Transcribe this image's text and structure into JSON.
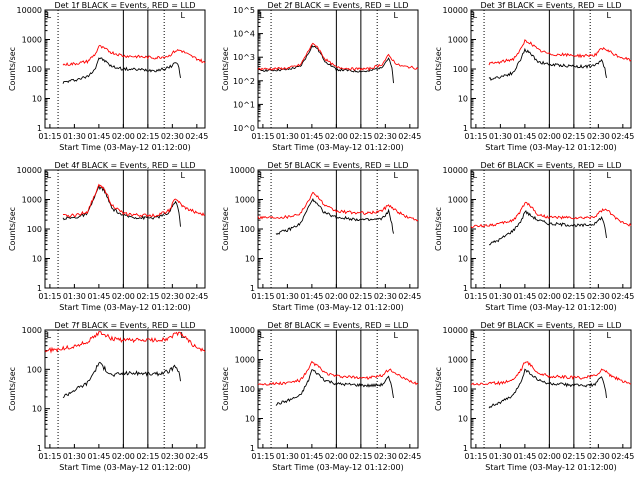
{
  "figure": {
    "x_tick_labels": [
      "01:15",
      "01:30",
      "01:45",
      "02:00",
      "02:15",
      "02:30",
      "02:45"
    ],
    "x_label": "Start Time (03-May-12 01:12:00)",
    "y_label": "Counts/sec"
  },
  "colors": {
    "events": "#000000",
    "lld": "#ff0000",
    "markers": "#000000"
  },
  "chart_data": [
    {
      "type": "line",
      "title": "Det 1f BLACK = Events, RED = LLD",
      "xlabel": "Start Time (03-May-12 01:12:00)",
      "ylabel": "Counts/sec",
      "ylog": true,
      "ylim": [
        1,
        10000
      ],
      "yticks": [
        "1",
        "10",
        "100",
        "1000",
        "10000"
      ],
      "xlim": [
        "01:12",
        "02:50"
      ],
      "x": [
        "01:23",
        "01:30",
        "01:38",
        "01:43",
        "01:45",
        "01:48",
        "01:53",
        "02:00",
        "02:10",
        "02:20",
        "02:28",
        "02:32",
        "02:35",
        "02:36",
        "02:37",
        "02:40",
        "02:43",
        "02:47",
        "02:50"
      ],
      "series": [
        {
          "name": "BLACK = Events",
          "x": [
            "01:23",
            "01:30",
            "01:38",
            "01:43",
            "01:45",
            "01:48",
            "01:53",
            "02:00",
            "02:10",
            "02:20",
            "02:28",
            "02:32",
            "02:34",
            "02:35"
          ],
          "values": [
            35,
            42,
            55,
            110,
            240,
            200,
            120,
            100,
            95,
            90,
            110,
            170,
            120,
            50
          ]
        },
        {
          "name": "RED = LLD",
          "values": [
            140,
            150,
            180,
            330,
            600,
            500,
            360,
            280,
            260,
            240,
            280,
            420,
            430,
            400,
            380,
            300,
            250,
            200,
            160
          ]
        }
      ]
    },
    {
      "type": "line",
      "title": "Det 2f BLACK = Events, RED = LLD",
      "xlabel": "Start Time (03-May-12 01:12:00)",
      "ylabel": "Counts/sec",
      "ylog": true,
      "ylim": [
        1,
        100000
      ],
      "yticks": [
        "10^0",
        "10^1",
        "10^2",
        "10^3",
        "10^4",
        "10^5"
      ],
      "xlim": [
        "01:12",
        "02:50"
      ],
      "x": [
        "01:12",
        "01:20",
        "01:30",
        "01:38",
        "01:43",
        "01:45",
        "01:48",
        "01:53",
        "02:00",
        "02:10",
        "02:20",
        "02:28",
        "02:32",
        "02:35",
        "02:36",
        "02:37",
        "02:40",
        "02:45",
        "02:50"
      ],
      "series": [
        {
          "name": "BLACK = Events",
          "x": [
            "01:12",
            "01:20",
            "01:30",
            "01:38",
            "01:43",
            "01:45",
            "01:48",
            "01:53",
            "02:00",
            "02:10",
            "02:20",
            "02:28",
            "02:32",
            "02:34",
            "02:35"
          ],
          "values": [
            280,
            280,
            300,
            400,
            1500,
            3000,
            2500,
            700,
            300,
            260,
            250,
            400,
            900,
            350,
            80
          ]
        },
        {
          "name": "RED = LLD",
          "values": [
            320,
            320,
            340,
            470,
            1900,
            3600,
            3000,
            850,
            370,
            320,
            320,
            500,
            1200,
            700,
            600,
            500,
            420,
            380,
            330
          ]
        }
      ]
    },
    {
      "type": "line",
      "title": "Det 3f BLACK = Events, RED = LLD",
      "xlabel": "Start Time (03-May-12 01:12:00)",
      "ylabel": "Counts/sec",
      "ylog": true,
      "ylim": [
        1,
        10000
      ],
      "yticks": [
        "1",
        "10",
        "100",
        "1000",
        "10000"
      ],
      "xlim": [
        "01:12",
        "02:50"
      ],
      "x": [
        "01:23",
        "01:30",
        "01:38",
        "01:43",
        "01:45",
        "01:48",
        "01:53",
        "02:00",
        "02:10",
        "02:20",
        "02:28",
        "02:32",
        "02:35",
        "02:36",
        "02:37",
        "02:40",
        "02:43",
        "02:47",
        "02:50"
      ],
      "series": [
        {
          "name": "BLACK = Events",
          "x": [
            "01:23",
            "01:30",
            "01:38",
            "01:43",
            "01:45",
            "01:48",
            "01:53",
            "02:00",
            "02:10",
            "02:20",
            "02:28",
            "02:32",
            "02:34",
            "02:35"
          ],
          "values": [
            45,
            55,
            75,
            250,
            450,
            350,
            180,
            140,
            130,
            120,
            130,
            200,
            110,
            50
          ]
        },
        {
          "name": "RED = LLD",
          "values": [
            150,
            170,
            220,
            500,
            900,
            800,
            450,
            320,
            300,
            280,
            300,
            480,
            450,
            400,
            380,
            300,
            260,
            220,
            200
          ]
        }
      ]
    },
    {
      "type": "line",
      "title": "Det 4f BLACK = Events, RED = LLD",
      "xlabel": "Start Time (03-May-12 01:12:00)",
      "ylabel": "Counts/sec",
      "ylog": true,
      "ylim": [
        1,
        10000
      ],
      "yticks": [
        "1",
        "10",
        "100",
        "1000",
        "10000"
      ],
      "xlim": [
        "01:12",
        "02:50"
      ],
      "x": [
        "01:23",
        "01:30",
        "01:38",
        "01:43",
        "01:45",
        "01:48",
        "01:53",
        "02:00",
        "02:10",
        "02:20",
        "02:28",
        "02:32",
        "02:35",
        "02:36",
        "02:37",
        "02:40",
        "02:43",
        "02:47",
        "02:50"
      ],
      "series": [
        {
          "name": "BLACK = Events",
          "x": [
            "01:23",
            "01:30",
            "01:38",
            "01:43",
            "01:45",
            "01:48",
            "01:53",
            "02:00",
            "02:10",
            "02:20",
            "02:28",
            "02:32",
            "02:34",
            "02:35"
          ],
          "values": [
            230,
            240,
            320,
            1500,
            2600,
            2200,
            500,
            280,
            240,
            240,
            350,
            900,
            400,
            120
          ]
        },
        {
          "name": "RED = LLD",
          "values": [
            280,
            290,
            380,
            1700,
            2900,
            2500,
            650,
            330,
            290,
            290,
            420,
            1100,
            700,
            600,
            550,
            450,
            400,
            320,
            300
          ]
        }
      ]
    },
    {
      "type": "line",
      "title": "Det 5f BLACK = Events, RED = LLD",
      "xlabel": "Start Time (03-May-12 01:12:00)",
      "ylabel": "Counts/sec",
      "ylog": true,
      "ylim": [
        1,
        10000
      ],
      "yticks": [
        "1",
        "10",
        "100",
        "1000",
        "10000"
      ],
      "xlim": [
        "01:12",
        "02:50"
      ],
      "x": [
        "01:12",
        "01:20",
        "01:30",
        "01:38",
        "01:43",
        "01:45",
        "01:48",
        "01:53",
        "02:00",
        "02:10",
        "02:20",
        "02:28",
        "02:32",
        "02:35",
        "02:36",
        "02:37",
        "02:40",
        "02:43",
        "02:47",
        "02:50"
      ],
      "series": [
        {
          "name": "BLACK = Events",
          "x": [
            "01:23",
            "01:30",
            "01:38",
            "01:43",
            "01:45",
            "01:48",
            "01:53",
            "02:00",
            "02:10",
            "02:20",
            "02:28",
            "02:32",
            "02:34",
            "02:35"
          ],
          "values": [
            70,
            90,
            150,
            550,
            1000,
            700,
            350,
            250,
            220,
            200,
            220,
            400,
            150,
            70
          ]
        },
        {
          "name": "RED = LLD",
          "values": [
            250,
            250,
            260,
            340,
            900,
            1700,
            1400,
            600,
            400,
            360,
            340,
            420,
            650,
            500,
            450,
            400,
            320,
            260,
            220,
            200
          ]
        }
      ]
    },
    {
      "type": "line",
      "title": "Det 6f BLACK = Events, RED = LLD",
      "xlabel": "Start Time (03-May-12 01:12:00)",
      "ylabel": "Counts/sec",
      "ylog": true,
      "ylim": [
        1,
        10000
      ],
      "yticks": [
        "1",
        "10",
        "100",
        "1000",
        "10000"
      ],
      "xlim": [
        "01:12",
        "02:50"
      ],
      "x": [
        "01:12",
        "01:20",
        "01:30",
        "01:38",
        "01:43",
        "01:45",
        "01:48",
        "01:53",
        "02:00",
        "02:10",
        "02:20",
        "02:28",
        "02:32",
        "02:35",
        "02:36",
        "02:37",
        "02:40",
        "02:43",
        "02:47",
        "02:50"
      ],
      "series": [
        {
          "name": "BLACK = Events",
          "x": [
            "01:23",
            "01:30",
            "01:38",
            "01:43",
            "01:45",
            "01:48",
            "01:53",
            "02:00",
            "02:10",
            "02:20",
            "02:28",
            "02:32",
            "02:34",
            "02:35"
          ],
          "values": [
            30,
            45,
            90,
            200,
            400,
            300,
            200,
            150,
            140,
            130,
            150,
            250,
            120,
            50
          ]
        },
        {
          "name": "RED = LLD",
          "values": [
            120,
            130,
            150,
            200,
            450,
            800,
            650,
            300,
            250,
            240,
            230,
            260,
            420,
            450,
            400,
            350,
            250,
            190,
            160,
            130
          ]
        }
      ]
    },
    {
      "type": "line",
      "title": "Det 7f BLACK = Events, RED = LLD",
      "xlabel": "Start Time (03-May-12 01:12:00)",
      "ylabel": "Counts/sec",
      "ylog": true,
      "ylim": [
        1,
        1000
      ],
      "yticks": [
        "1",
        "10",
        "100",
        "1000"
      ],
      "xlim": [
        "01:12",
        "02:50"
      ],
      "x": [
        "01:12",
        "01:20",
        "01:30",
        "01:38",
        "01:43",
        "01:45",
        "01:48",
        "01:53",
        "02:00",
        "02:10",
        "02:20",
        "02:28",
        "02:32",
        "02:35",
        "02:36",
        "02:37",
        "02:40",
        "02:43",
        "02:47",
        "02:50"
      ],
      "series": [
        {
          "name": "BLACK = Events",
          "x": [
            "01:23",
            "01:30",
            "01:38",
            "01:43",
            "01:45",
            "01:48",
            "01:53",
            "02:00",
            "02:10",
            "02:20",
            "02:28",
            "02:32",
            "02:34",
            "02:35"
          ],
          "values": [
            20,
            30,
            45,
            100,
            150,
            110,
            70,
            80,
            80,
            75,
            90,
            120,
            80,
            50
          ]
        },
        {
          "name": "RED = LLD",
          "values": [
            300,
            320,
            380,
            500,
            700,
            900,
            800,
            600,
            550,
            550,
            550,
            600,
            800,
            800,
            750,
            700,
            550,
            400,
            320,
            280
          ]
        }
      ]
    },
    {
      "type": "line",
      "title": "Det 8f BLACK = Events, RED = LLD",
      "xlabel": "Start Time (03-May-12 01:12:00)",
      "ylabel": "Counts/sec",
      "ylog": true,
      "ylim": [
        1,
        10000
      ],
      "yticks": [
        "1",
        "10",
        "100",
        "1000",
        "10000"
      ],
      "xlim": [
        "01:12",
        "02:50"
      ],
      "x": [
        "01:12",
        "01:20",
        "01:30",
        "01:38",
        "01:43",
        "01:45",
        "01:48",
        "01:53",
        "02:00",
        "02:10",
        "02:20",
        "02:28",
        "02:32",
        "02:35",
        "02:36",
        "02:37",
        "02:40",
        "02:43",
        "02:47",
        "02:50"
      ],
      "series": [
        {
          "name": "BLACK = Events",
          "x": [
            "01:23",
            "01:30",
            "01:38",
            "01:43",
            "01:45",
            "01:48",
            "01:53",
            "02:00",
            "02:10",
            "02:20",
            "02:28",
            "02:32",
            "02:34",
            "02:35"
          ],
          "values": [
            30,
            40,
            60,
            200,
            450,
            350,
            200,
            150,
            140,
            130,
            140,
            250,
            110,
            50
          ]
        },
        {
          "name": "RED = LLD",
          "values": [
            150,
            150,
            160,
            200,
            450,
            800,
            650,
            350,
            270,
            250,
            240,
            280,
            450,
            400,
            350,
            300,
            250,
            200,
            170,
            150
          ]
        }
      ]
    },
    {
      "type": "line",
      "title": "Det 9f BLACK = Events, RED = LLD",
      "xlabel": "Start Time (03-May-12 01:12:00)",
      "ylabel": "Counts/sec",
      "ylog": true,
      "ylim": [
        1,
        10000
      ],
      "yticks": [
        "1",
        "10",
        "100",
        "1000",
        "10000"
      ],
      "xlim": [
        "01:12",
        "02:50"
      ],
      "x": [
        "01:12",
        "01:20",
        "01:30",
        "01:38",
        "01:43",
        "01:45",
        "01:48",
        "01:53",
        "02:00",
        "02:10",
        "02:20",
        "02:28",
        "02:32",
        "02:35",
        "02:36",
        "02:37",
        "02:40",
        "02:43",
        "02:47",
        "02:50"
      ],
      "series": [
        {
          "name": "BLACK = Events",
          "x": [
            "01:23",
            "01:30",
            "01:38",
            "01:43",
            "01:45",
            "01:48",
            "01:53",
            "02:00",
            "02:10",
            "02:20",
            "02:28",
            "02:32",
            "02:34",
            "02:35"
          ],
          "values": [
            25,
            35,
            60,
            200,
            450,
            350,
            200,
            150,
            140,
            130,
            140,
            260,
            120,
            50
          ]
        },
        {
          "name": "RED = LLD",
          "values": [
            150,
            150,
            160,
            210,
            480,
            850,
            700,
            350,
            270,
            250,
            240,
            280,
            450,
            400,
            350,
            300,
            250,
            200,
            170,
            150
          ]
        }
      ]
    }
  ],
  "markers": {
    "dotted_times": [
      "01:20",
      "02:25"
    ],
    "solid_times": [
      "02:00",
      "02:15"
    ],
    "flag_label": "L"
  }
}
